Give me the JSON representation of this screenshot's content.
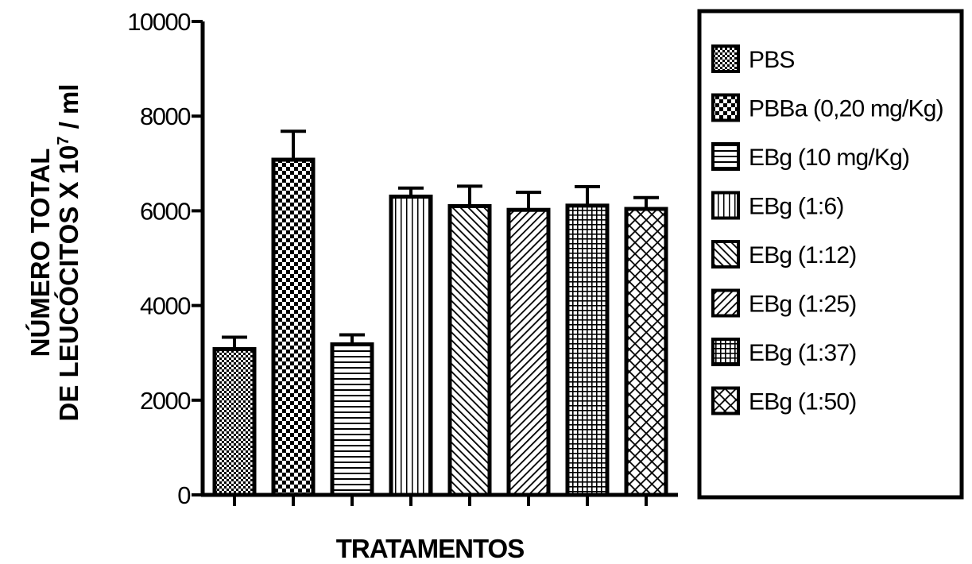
{
  "chart_data": {
    "type": "bar",
    "xlabel": "TRATAMENTOS",
    "ylabel_line1": "NÚMERO TOTAL",
    "ylabel_line2_main": "DE LEUCÓCITOS X 10",
    "ylabel_line2_exp": "7",
    "ylabel_line2_tail": " / ml",
    "ylim": [
      0,
      10000
    ],
    "yticks": [
      "0",
      "2000",
      "4000",
      "6000",
      "8000",
      "10000"
    ],
    "legend_position": "right",
    "categories": [
      "PBS",
      "PBBa (0,20 mg/Kg)",
      "EBg (10 mg/Kg)",
      "EBg (1:6)",
      "EBg (1:12)",
      "EBg (1:25)",
      "EBg (1:37)",
      "EBg (1:50)"
    ],
    "values": [
      3080,
      7080,
      3180,
      6300,
      6100,
      6020,
      6110,
      6040
    ],
    "errors": [
      250,
      600,
      200,
      180,
      420,
      370,
      400,
      240
    ],
    "patterns": [
      "checker-fine",
      "checker-large",
      "horizontal-lines",
      "vertical-lines",
      "diagonal-forward",
      "diagonal-back",
      "grid",
      "crosshatch"
    ],
    "bar_color": "#000000",
    "background_color": "#ffffff"
  }
}
